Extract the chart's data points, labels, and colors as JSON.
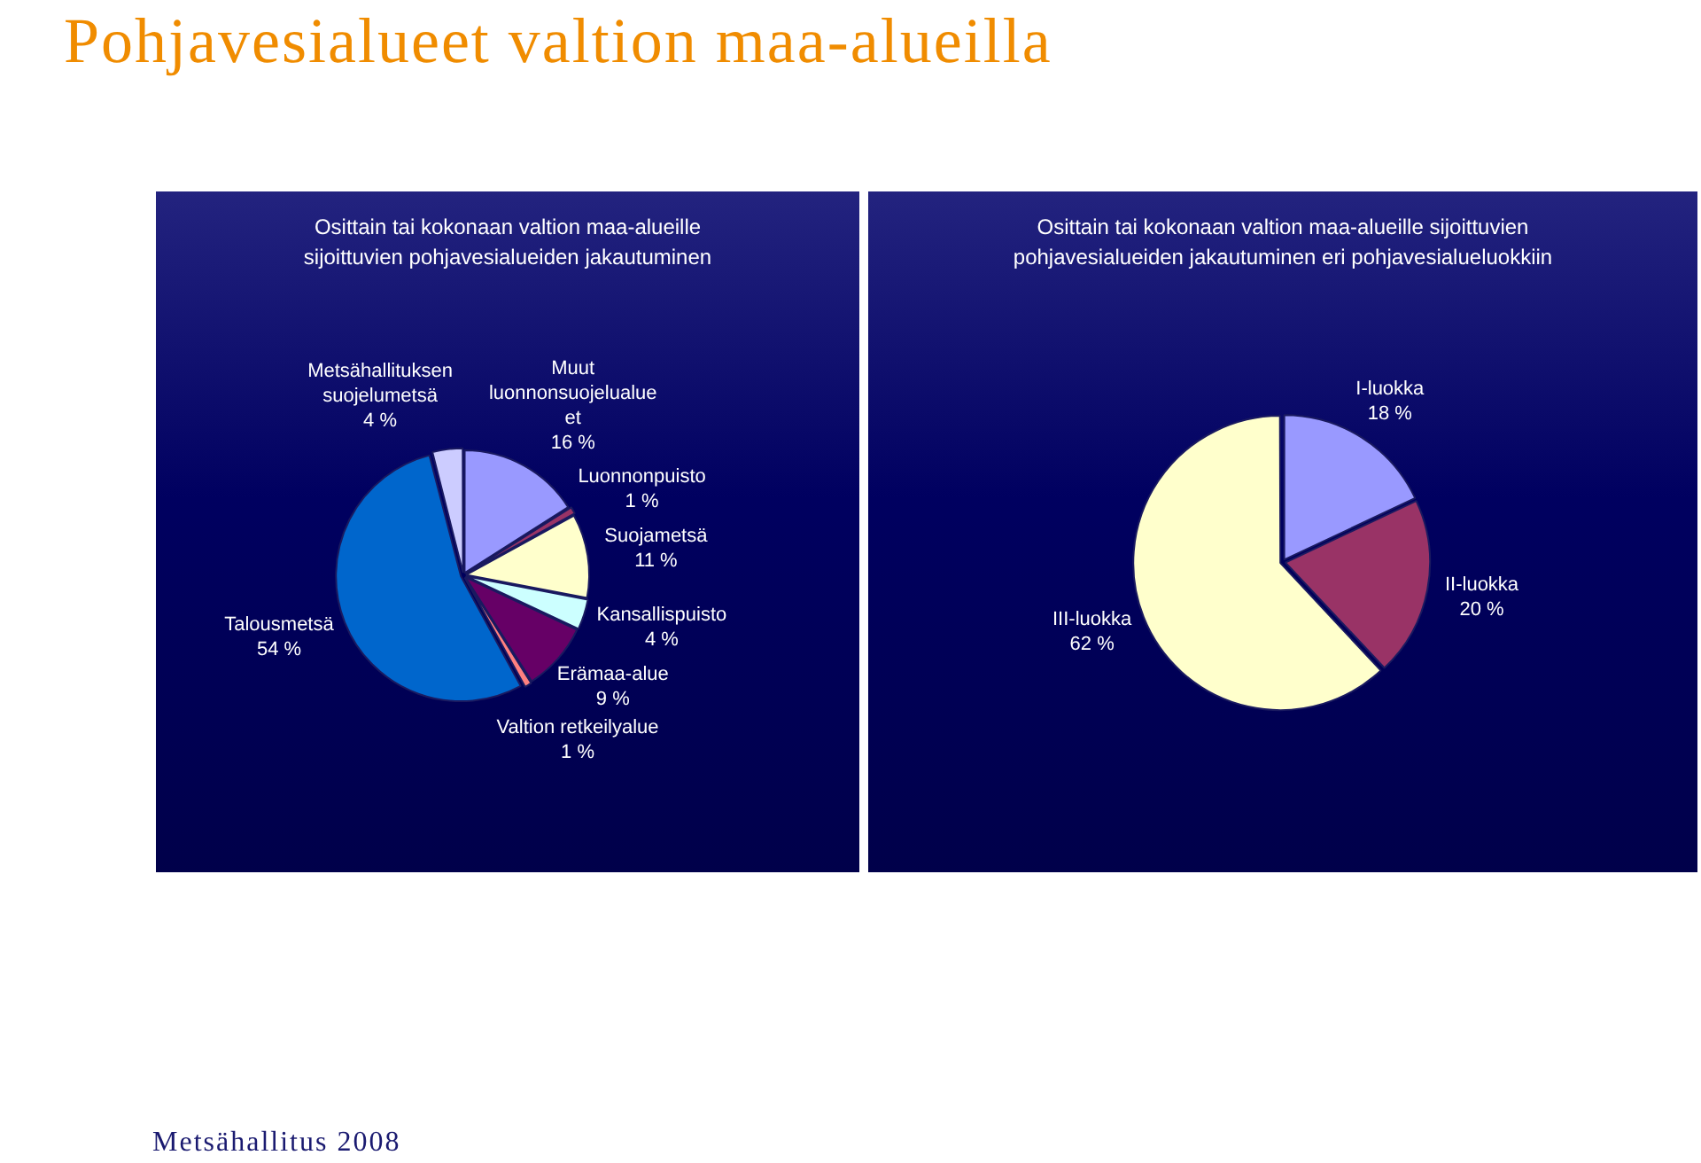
{
  "chart_data": [
    {
      "type": "pie",
      "title": "Osittain tai kokonaan valtion maa-alueille sijoittuvien pohjavesialueiden jakautuminen",
      "categories": [
        "Muut luonnonsuojelualueet",
        "Luonnonpuisto",
        "Suojametsä",
        "Kansallispuisto",
        "Erämaa-alue",
        "Valtion retkeilyalue",
        "Talousmetsä",
        "Metsähallituksen suojelumetsä"
      ],
      "values": [
        16,
        1,
        11,
        4,
        9,
        1,
        54,
        4
      ],
      "value_labels": [
        "16 %",
        "1 %",
        "11 %",
        "4 %",
        "9 %",
        "1 %",
        "54 %",
        "4 %"
      ],
      "colors": [
        "#9999ff",
        "#993366",
        "#ffffcc",
        "#ccffff",
        "#660066",
        "#ff8080",
        "#0066cc",
        "#ccccff"
      ],
      "legend": false,
      "annotations": [
        "Pohjavesialueet valtion maa-alueilla",
        "Metsähallitus 2008"
      ]
    },
    {
      "type": "pie",
      "title": "Osittain tai kokonaan valtion maa-alueille sijoittuvien pohjavesialueiden jakautuminen eri pohjavesialueluokkiin",
      "categories": [
        "I-luokka",
        "II-luokka",
        "III-luokka"
      ],
      "values": [
        18,
        20,
        62
      ],
      "value_labels": [
        "18 %",
        "20 %",
        "62 %"
      ],
      "colors": [
        "#9999ff",
        "#993366",
        "#ffffcc"
      ],
      "legend": false
    }
  ]
}
